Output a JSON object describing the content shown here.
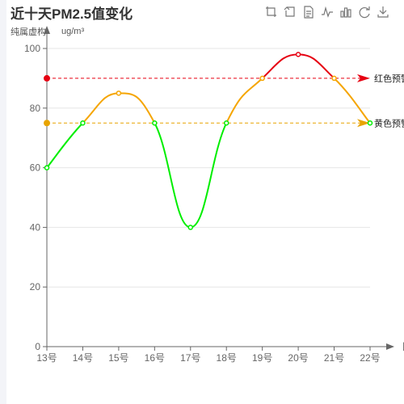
{
  "page": {
    "title": "近十天PM2.5值变化",
    "subtitle": "纯属虚构"
  },
  "toolbox": [
    {
      "name": "zoom-icon"
    },
    {
      "name": "zoom-reset-icon"
    },
    {
      "name": "data-view-icon"
    },
    {
      "name": "line-chart-icon"
    },
    {
      "name": "bar-chart-icon"
    },
    {
      "name": "restore-icon"
    },
    {
      "name": "save-image-icon"
    }
  ],
  "chart_data": {
    "type": "line",
    "title": "近十天PM2.5值变化",
    "subtitle": "纯属虚构",
    "ylabel": "ug/m³",
    "xlabel": "日期",
    "categories": [
      "13号",
      "14号",
      "15号",
      "16号",
      "17号",
      "18号",
      "19号",
      "20号",
      "21号",
      "22号"
    ],
    "series": [
      {
        "values": [
          60,
          75,
          85,
          75,
          40,
          75,
          90,
          98,
          90,
          75
        ]
      }
    ],
    "ylim": [
      0,
      100
    ],
    "yticks": [
      0,
      20,
      40,
      60,
      80,
      100
    ],
    "grid": true,
    "smooth": true,
    "visual_map": [
      {
        "range": "<= 75",
        "color": "#00ee00"
      },
      {
        "range": "75 - 90",
        "color": "#f5a500"
      },
      {
        "range": "> 90",
        "color": "#e60012"
      }
    ],
    "mark_lines": [
      {
        "value": 90,
        "label": "红色预警",
        "color": "#e60012"
      },
      {
        "value": 75,
        "label": "黄色预警",
        "color": "#e8a400"
      }
    ]
  }
}
